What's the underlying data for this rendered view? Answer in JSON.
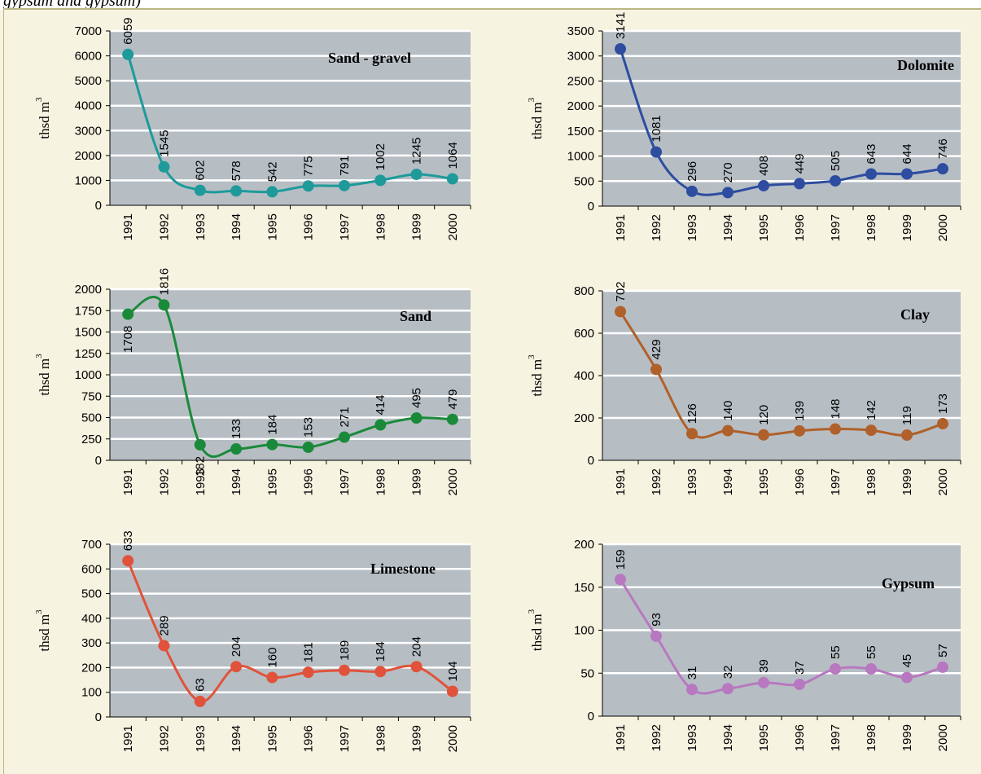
{
  "page": {
    "caption": "gypsum and gypsum)"
  },
  "chart_data": [
    {
      "type": "line",
      "title": "Sand - gravel",
      "ylabel": "thsd m",
      "ylabel_sup": "3",
      "x": [
        "1991",
        "1992",
        "1993",
        "1994",
        "1995",
        "1996",
        "1997",
        "1998",
        "1999",
        "2000"
      ],
      "values": [
        6059,
        1545,
        602,
        578,
        542,
        775,
        791,
        1002,
        1245,
        1064
      ],
      "ylim": [
        0,
        7000
      ],
      "yticks": [
        0,
        1000,
        2000,
        3000,
        4000,
        5000,
        6000,
        7000
      ],
      "color": "#1e9a9a",
      "grid": true
    },
    {
      "type": "line",
      "title": "Dolomite",
      "ylabel": "thsd m",
      "ylabel_sup": "3",
      "x": [
        "1991",
        "1992",
        "1993",
        "1994",
        "1995",
        "1996",
        "1997",
        "1998",
        "1999",
        "2000"
      ],
      "values": [
        3141,
        1081,
        296,
        270,
        408,
        449,
        505,
        643,
        644,
        746
      ],
      "ylim": [
        0,
        3500
      ],
      "yticks": [
        0,
        500,
        1000,
        1500,
        2000,
        2500,
        3000,
        3500
      ],
      "color": "#2e4da0",
      "grid": true
    },
    {
      "type": "line",
      "title": "Sand",
      "ylabel": "thsd m",
      "ylabel_sup": "3",
      "x": [
        "1991",
        "1992",
        "1993",
        "1994",
        "1995",
        "1996",
        "1997",
        "1998",
        "1999",
        "2000"
      ],
      "values": [
        1708,
        1816,
        182,
        133,
        184,
        153,
        271,
        414,
        495,
        479
      ],
      "ylim": [
        0,
        2000
      ],
      "yticks": [
        0,
        250,
        500,
        750,
        1000,
        1250,
        1500,
        1750,
        2000
      ],
      "color": "#1a8a3a",
      "grid": true
    },
    {
      "type": "line",
      "title": "Clay",
      "ylabel": "thsd m",
      "ylabel_sup": "3",
      "x": [
        "1991",
        "1992",
        "1993",
        "1994",
        "1995",
        "1996",
        "1997",
        "1998",
        "1999",
        "2000"
      ],
      "values": [
        702,
        429,
        126,
        140,
        120,
        139,
        148,
        142,
        119,
        173
      ],
      "ylim": [
        0,
        800
      ],
      "yticks": [
        0,
        200,
        400,
        600,
        800
      ],
      "color": "#b0602a",
      "grid": true
    },
    {
      "type": "line",
      "title": "Limestone",
      "ylabel": "thsd m",
      "ylabel_sup": "3",
      "x": [
        "1991",
        "1992",
        "1993",
        "1994",
        "1995",
        "1996",
        "1997",
        "1998",
        "1999",
        "2000"
      ],
      "values": [
        633,
        289,
        63,
        204,
        160,
        181,
        189,
        184,
        204,
        104
      ],
      "ylim": [
        0,
        700
      ],
      "yticks": [
        0,
        100,
        200,
        300,
        400,
        500,
        600,
        700
      ],
      "color": "#e0533a",
      "grid": true
    },
    {
      "type": "line",
      "title": "Gypsum",
      "ylabel": "thsd m",
      "ylabel_sup": "3",
      "x": [
        "1991",
        "1992",
        "1993",
        "1994",
        "1995",
        "1996",
        "1997",
        "1998",
        "1999",
        "2000"
      ],
      "values": [
        159,
        93,
        31,
        32,
        39,
        37,
        55,
        55,
        45,
        57
      ],
      "ylim": [
        0,
        200
      ],
      "yticks": [
        0,
        50,
        100,
        150,
        200
      ],
      "color": "#b878c0",
      "grid": true
    }
  ]
}
